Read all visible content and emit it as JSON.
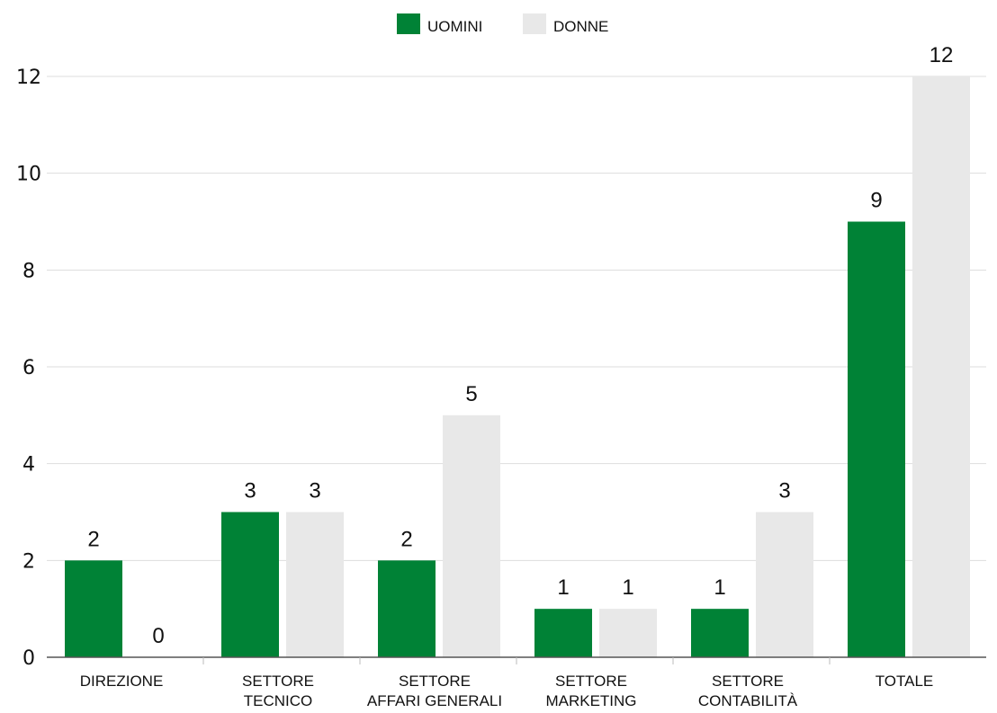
{
  "chart_data": {
    "type": "bar",
    "categories": [
      [
        "DIREZIONE"
      ],
      [
        "SETTORE",
        "TECNICO"
      ],
      [
        "SETTORE",
        "AFFARI GENERALI"
      ],
      [
        "SETTORE",
        "MARKETING"
      ],
      [
        "SETTORE",
        "CONTABILITÀ"
      ],
      [
        "TOTALE"
      ]
    ],
    "series": [
      {
        "name": "UOMINI",
        "color": "#008236",
        "values": [
          2,
          3,
          2,
          1,
          1,
          9
        ]
      },
      {
        "name": "DONNE",
        "color": "#e8e8e8",
        "values": [
          0,
          3,
          5,
          1,
          3,
          12
        ]
      }
    ],
    "yticks": [
      0,
      2,
      4,
      6,
      8,
      10,
      12
    ],
    "ylim": [
      0,
      12
    ],
    "grid": true,
    "legend_position": "top-center",
    "title": "",
    "xlabel": "",
    "ylabel": ""
  }
}
